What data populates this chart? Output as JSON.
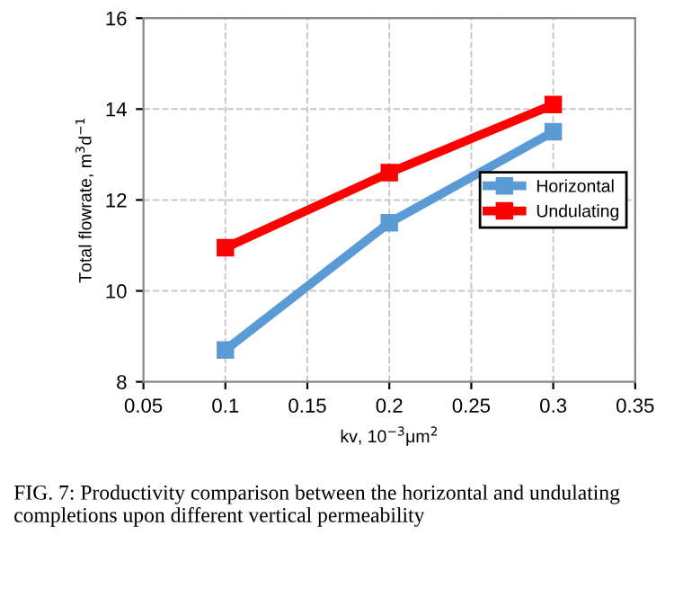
{
  "chart_data": {
    "type": "line",
    "xlabel": "kv, 10$^{−3}$μm$^{2}$",
    "ylabel": "Total flowrate, m$^{3}$d$^{−1}$",
    "x": [
      0.1,
      0.2,
      0.3
    ],
    "series": [
      {
        "name": "Horizontal",
        "color": "#5b9bd5",
        "values": [
          8.7,
          11.5,
          13.5
        ]
      },
      {
        "name": "Undulating",
        "color": "#ff0000",
        "values": [
          10.95,
          12.6,
          14.1
        ]
      }
    ],
    "xlim": [
      0.05,
      0.35
    ],
    "xticks": [
      0.05,
      0.1,
      0.15,
      0.2,
      0.25,
      0.3,
      0.35
    ],
    "ylim": [
      8,
      16
    ],
    "yticks": [
      8,
      10,
      12,
      14,
      16
    ],
    "grid": true,
    "legend": "center right",
    "marker": "square",
    "line_style": "solid",
    "annotations": [
      "FIG. 7: Productivity comparison between the horizontal and undulating completions upon different vertical permeability"
    ]
  }
}
